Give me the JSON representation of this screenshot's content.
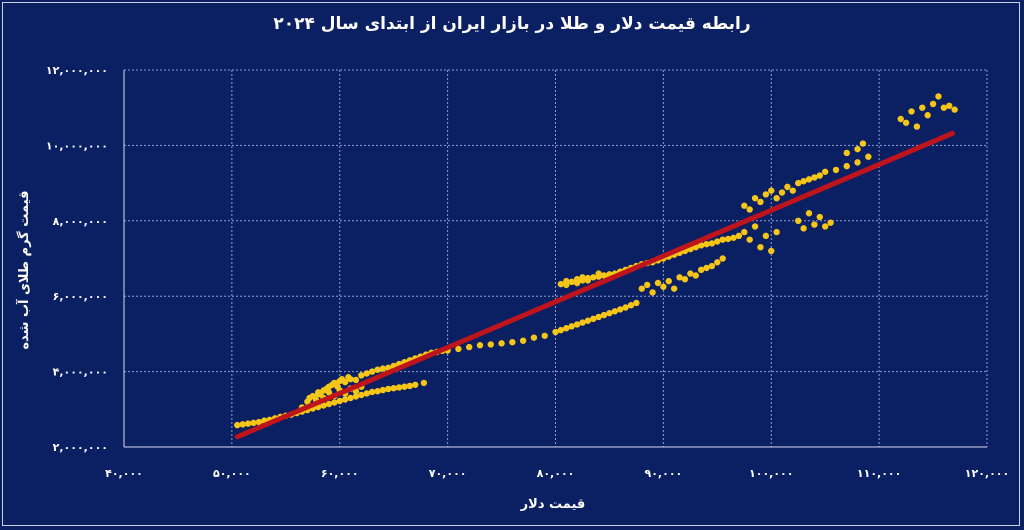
{
  "chart_data": {
    "type": "scatter",
    "title": "رابطه قیمت دلار و طلا در بازار ایران از ابتدای سال ۲۰۲۴",
    "xlabel": "قیمت دلار",
    "ylabel": "قیمت گرم طلای آب شده",
    "xlim": [
      40000,
      120000
    ],
    "ylim": [
      2000000,
      12000000
    ],
    "x_ticks": [
      40000,
      50000,
      60000,
      70000,
      80000,
      90000,
      100000,
      110000,
      120000
    ],
    "y_ticks": [
      2000000,
      4000000,
      6000000,
      8000000,
      10000000,
      12000000
    ],
    "x_tick_labels": [
      "۴۰,۰۰۰",
      "۵۰,۰۰۰",
      "۶۰,۰۰۰",
      "۷۰,۰۰۰",
      "۸۰,۰۰۰",
      "۹۰,۰۰۰",
      "۱۰۰,۰۰۰",
      "۱۱۰,۰۰۰",
      "۱۲۰,۰۰۰"
    ],
    "y_tick_labels": [
      "۲,۰۰۰,۰۰۰",
      "۴,۰۰۰,۰۰۰",
      "۶,۰۰۰,۰۰۰",
      "۸,۰۰۰,۰۰۰",
      "۱۰,۰۰۰,۰۰۰",
      "۱۲,۰۰۰,۰۰۰"
    ],
    "grid": true,
    "colors": {
      "points": "#f5c518",
      "trendline": "#c0141c",
      "background": "#0b1f63",
      "grid": "#8da0cf"
    },
    "series": [
      {
        "kind": "points",
        "points": [
          [
            50500,
            2580000
          ],
          [
            51000,
            2600000
          ],
          [
            51500,
            2620000
          ],
          [
            52000,
            2640000
          ],
          [
            52500,
            2660000
          ],
          [
            53000,
            2700000
          ],
          [
            53500,
            2720000
          ],
          [
            54000,
            2760000
          ],
          [
            54500,
            2800000
          ],
          [
            55000,
            2830000
          ],
          [
            55500,
            2860000
          ],
          [
            56000,
            2900000
          ],
          [
            56500,
            2940000
          ],
          [
            57000,
            2980000
          ],
          [
            57500,
            3020000
          ],
          [
            58000,
            3060000
          ],
          [
            58500,
            3100000
          ],
          [
            59000,
            3140000
          ],
          [
            59500,
            3180000
          ],
          [
            60000,
            3220000
          ],
          [
            60500,
            3260000
          ],
          [
            61000,
            3300000
          ],
          [
            61500,
            3340000
          ],
          [
            62000,
            3380000
          ],
          [
            62500,
            3420000
          ],
          [
            63000,
            3460000
          ],
          [
            63500,
            3480000
          ],
          [
            64000,
            3510000
          ],
          [
            64500,
            3540000
          ],
          [
            65000,
            3560000
          ],
          [
            65500,
            3580000
          ],
          [
            66000,
            3600000
          ],
          [
            66500,
            3620000
          ],
          [
            67000,
            3650000
          ],
          [
            67800,
            3700000
          ],
          [
            56500,
            3050000
          ],
          [
            57000,
            3200000
          ],
          [
            57200,
            3300000
          ],
          [
            57500,
            3350000
          ],
          [
            57800,
            3250000
          ],
          [
            58000,
            3450000
          ],
          [
            58200,
            3400000
          ],
          [
            58500,
            3500000
          ],
          [
            58800,
            3550000
          ],
          [
            59000,
            3600000
          ],
          [
            59300,
            3650000
          ],
          [
            59500,
            3700000
          ],
          [
            59800,
            3600000
          ],
          [
            60000,
            3750000
          ],
          [
            60200,
            3800000
          ],
          [
            60500,
            3720000
          ],
          [
            60800,
            3850000
          ],
          [
            61000,
            3800000
          ],
          [
            61500,
            3780000
          ],
          [
            62000,
            3900000
          ],
          [
            62500,
            3950000
          ],
          [
            63000,
            4000000
          ],
          [
            63500,
            4050000
          ],
          [
            64000,
            4080000
          ],
          [
            64500,
            4100000
          ],
          [
            65000,
            4150000
          ],
          [
            65500,
            4200000
          ],
          [
            66000,
            4250000
          ],
          [
            66500,
            4300000
          ],
          [
            67000,
            4350000
          ],
          [
            67500,
            4400000
          ],
          [
            68000,
            4450000
          ],
          [
            68500,
            4500000
          ],
          [
            69000,
            4520000
          ],
          [
            69500,
            4550000
          ],
          [
            70000,
            4560000
          ],
          [
            58000,
            3400000
          ],
          [
            58500,
            3300000
          ],
          [
            59000,
            3450000
          ],
          [
            59500,
            3350000
          ],
          [
            60000,
            3500000
          ],
          [
            60500,
            3420000
          ],
          [
            61000,
            3550000
          ],
          [
            61500,
            3480000
          ],
          [
            62000,
            3600000
          ],
          [
            71000,
            4600000
          ],
          [
            72000,
            4650000
          ],
          [
            73000,
            4700000
          ],
          [
            74000,
            4720000
          ],
          [
            75000,
            4750000
          ],
          [
            76000,
            4780000
          ],
          [
            77000,
            4820000
          ],
          [
            78000,
            4900000
          ],
          [
            79000,
            4950000
          ],
          [
            80000,
            5050000
          ],
          [
            80500,
            5100000
          ],
          [
            81000,
            5150000
          ],
          [
            81500,
            5200000
          ],
          [
            82000,
            5250000
          ],
          [
            82500,
            5300000
          ],
          [
            83000,
            5350000
          ],
          [
            83500,
            5400000
          ],
          [
            84000,
            5450000
          ],
          [
            84500,
            5500000
          ],
          [
            85000,
            5550000
          ],
          [
            85500,
            5600000
          ],
          [
            86000,
            5650000
          ],
          [
            86500,
            5700000
          ],
          [
            87000,
            5760000
          ],
          [
            87500,
            5820000
          ],
          [
            80500,
            6320000
          ],
          [
            81000,
            6400000
          ],
          [
            81500,
            6380000
          ],
          [
            82000,
            6450000
          ],
          [
            82500,
            6420000
          ],
          [
            83000,
            6480000
          ],
          [
            83500,
            6500000
          ],
          [
            84000,
            6520000
          ],
          [
            84500,
            6550000
          ],
          [
            85000,
            6580000
          ],
          [
            85500,
            6600000
          ],
          [
            86000,
            6650000
          ],
          [
            86500,
            6700000
          ],
          [
            87000,
            6750000
          ],
          [
            87500,
            6800000
          ],
          [
            88000,
            6850000
          ],
          [
            88500,
            6880000
          ],
          [
            89000,
            6900000
          ],
          [
            89500,
            6950000
          ],
          [
            90000,
            7000000
          ],
          [
            90500,
            7050000
          ],
          [
            91000,
            7100000
          ],
          [
            91500,
            7150000
          ],
          [
            92000,
            7200000
          ],
          [
            92500,
            7250000
          ],
          [
            93000,
            7300000
          ],
          [
            93500,
            7350000
          ],
          [
            94000,
            7380000
          ],
          [
            94500,
            7400000
          ],
          [
            95000,
            7450000
          ],
          [
            95500,
            7500000
          ],
          [
            96000,
            7520000
          ],
          [
            96500,
            7550000
          ],
          [
            97000,
            7600000
          ],
          [
            81000,
            6300000
          ],
          [
            82000,
            6350000
          ],
          [
            82500,
            6500000
          ],
          [
            83000,
            6420000
          ],
          [
            84000,
            6600000
          ],
          [
            85000,
            6550000
          ],
          [
            88000,
            6200000
          ],
          [
            88500,
            6300000
          ],
          [
            89000,
            6100000
          ],
          [
            89500,
            6350000
          ],
          [
            90000,
            6250000
          ],
          [
            90500,
            6400000
          ],
          [
            91000,
            6200000
          ],
          [
            91500,
            6500000
          ],
          [
            92000,
            6450000
          ],
          [
            92500,
            6600000
          ],
          [
            93000,
            6550000
          ],
          [
            93500,
            6700000
          ],
          [
            94000,
            6750000
          ],
          [
            94500,
            6800000
          ],
          [
            95000,
            6900000
          ],
          [
            95500,
            7000000
          ],
          [
            97500,
            8400000
          ],
          [
            98000,
            8300000
          ],
          [
            98500,
            8600000
          ],
          [
            99000,
            8500000
          ],
          [
            99500,
            8700000
          ],
          [
            100000,
            8800000
          ],
          [
            100500,
            8600000
          ],
          [
            101000,
            8750000
          ],
          [
            101500,
            8900000
          ],
          [
            102000,
            8800000
          ],
          [
            102500,
            9000000
          ],
          [
            103000,
            9050000
          ],
          [
            103500,
            9100000
          ],
          [
            104000,
            9150000
          ],
          [
            104500,
            9200000
          ],
          [
            105000,
            9300000
          ],
          [
            106000,
            9350000
          ],
          [
            107000,
            9450000
          ],
          [
            108000,
            9550000
          ],
          [
            109000,
            9700000
          ],
          [
            97500,
            7700000
          ],
          [
            98000,
            7500000
          ],
          [
            98500,
            7850000
          ],
          [
            99000,
            7300000
          ],
          [
            99500,
            7600000
          ],
          [
            100000,
            7200000
          ],
          [
            100500,
            7700000
          ],
          [
            102500,
            8000000
          ],
          [
            103000,
            7800000
          ],
          [
            103500,
            8200000
          ],
          [
            104000,
            7900000
          ],
          [
            104500,
            8100000
          ],
          [
            105000,
            7850000
          ],
          [
            105500,
            7950000
          ],
          [
            107000,
            9800000
          ],
          [
            108000,
            9900000
          ],
          [
            108500,
            10050000
          ],
          [
            112000,
            10700000
          ],
          [
            112500,
            10600000
          ],
          [
            113000,
            10900000
          ],
          [
            113500,
            10500000
          ],
          [
            114000,
            11000000
          ],
          [
            114500,
            10800000
          ],
          [
            115000,
            11100000
          ],
          [
            115500,
            11300000
          ],
          [
            116000,
            11000000
          ],
          [
            116500,
            11050000
          ],
          [
            117000,
            10950000
          ]
        ]
      },
      {
        "kind": "trendline",
        "points": [
          [
            50500,
            2270000
          ],
          [
            116800,
            10320000
          ]
        ]
      }
    ]
  }
}
